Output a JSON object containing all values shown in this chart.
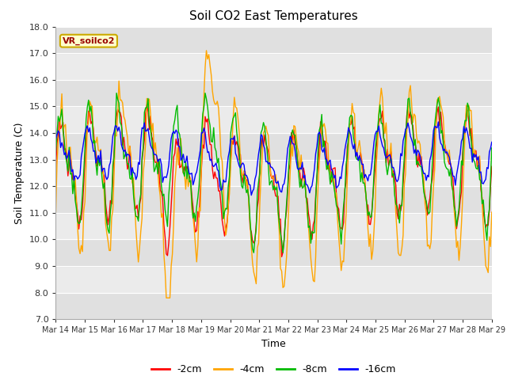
{
  "title": "Soil CO2 East Temperatures",
  "xlabel": "Time",
  "ylabel": "Soil Temperature (C)",
  "ylim": [
    7.0,
    18.0
  ],
  "yticks": [
    7.0,
    8.0,
    9.0,
    10.0,
    11.0,
    12.0,
    13.0,
    14.0,
    15.0,
    16.0,
    17.0,
    18.0
  ],
  "xtick_labels": [
    "Mar 14",
    "Mar 15",
    "Mar 16",
    "Mar 17",
    "Mar 18",
    "Mar 19",
    "Mar 20",
    "Mar 21",
    "Mar 22",
    "Mar 23",
    "Mar 24",
    "Mar 25",
    "Mar 26",
    "Mar 27",
    "Mar 28",
    "Mar 29"
  ],
  "legend_label": "VR_soilco2",
  "series_labels": [
    "-2cm",
    "-4cm",
    "-8cm",
    "-16cm"
  ],
  "series_colors": [
    "#ff0000",
    "#ffa500",
    "#00bb00",
    "#0000ff"
  ],
  "band_colors": [
    "#e0e0e0",
    "#ebebeb"
  ],
  "title_fontsize": 11,
  "axis_fontsize": 9,
  "tick_fontsize": 8,
  "legend_box_facecolor": "#ffffcc",
  "legend_box_edgecolor": "#ccaa00",
  "legend_box_textcolor": "#990000"
}
